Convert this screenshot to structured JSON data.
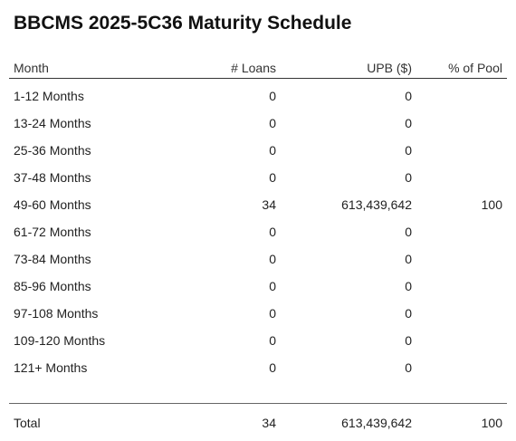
{
  "title": "BBCMS 2025-5C36 Maturity Schedule",
  "columns": {
    "month": "Month",
    "loans": "# Loans",
    "upb": "UPB ($)",
    "pool": "% of Pool"
  },
  "rows": [
    {
      "month": "1-12 Months",
      "loans": "0",
      "upb": "0",
      "pool": ""
    },
    {
      "month": "13-24 Months",
      "loans": "0",
      "upb": "0",
      "pool": ""
    },
    {
      "month": "25-36 Months",
      "loans": "0",
      "upb": "0",
      "pool": ""
    },
    {
      "month": "37-48 Months",
      "loans": "0",
      "upb": "0",
      "pool": ""
    },
    {
      "month": "49-60 Months",
      "loans": "34",
      "upb": "613,439,642",
      "pool": "100"
    },
    {
      "month": "61-72 Months",
      "loans": "0",
      "upb": "0",
      "pool": ""
    },
    {
      "month": "73-84 Months",
      "loans": "0",
      "upb": "0",
      "pool": ""
    },
    {
      "month": "85-96 Months",
      "loans": "0",
      "upb": "0",
      "pool": ""
    },
    {
      "month": "97-108 Months",
      "loans": "0",
      "upb": "0",
      "pool": ""
    },
    {
      "month": "109-120 Months",
      "loans": "0",
      "upb": "0",
      "pool": ""
    },
    {
      "month": "121+ Months",
      "loans": "0",
      "upb": "0",
      "pool": ""
    }
  ],
  "total": {
    "month": "Total",
    "loans": "34",
    "upb": "613,439,642",
    "pool": "100"
  }
}
